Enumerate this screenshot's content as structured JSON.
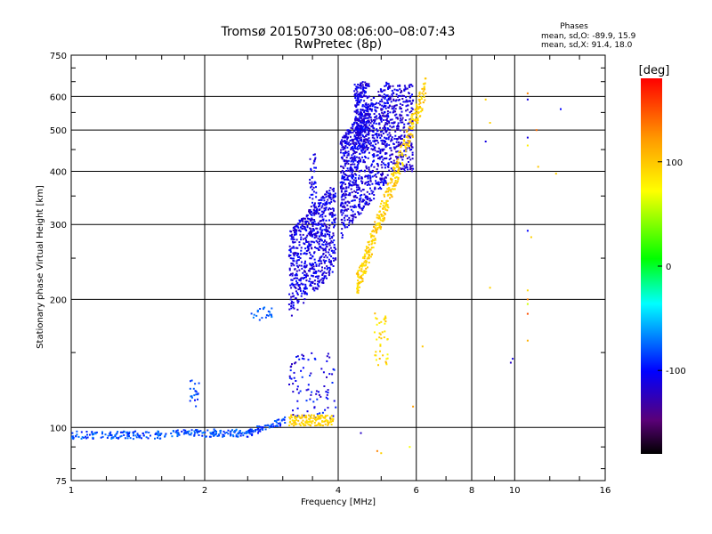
{
  "title_line1": "Tromsø 20150730 08:06:00–08:07:43",
  "title_line2": "RwPretec (8p)",
  "phase_info": {
    "heading": "Phases",
    "line_o": "mean, sd,O: -89.9, 15.9",
    "line_x": "mean, sd,X:  91.4, 18.0"
  },
  "colorbar": {
    "unit_label": "[deg]",
    "ticks": [
      "100",
      "0",
      "-100"
    ],
    "tick_values": [
      100,
      0,
      -100
    ],
    "range": [
      -180,
      180
    ],
    "colormap": "rainbow (black → purple → blue → cyan → green → yellow → orange → red)"
  },
  "chart_data": {
    "type": "scatter",
    "xlabel": "Frequency [MHz]",
    "ylabel": "Stationary phase Virtual Height [km]",
    "x_scale": "log",
    "y_scale": "log",
    "xlim": [
      1,
      16
    ],
    "ylim": [
      75,
      750
    ],
    "xticks": [
      1,
      2,
      4,
      6,
      8,
      10,
      16
    ],
    "xtick_labels": [
      "1",
      "2",
      "4",
      "6",
      "8",
      "10",
      "16"
    ],
    "yticks": [
      75,
      100,
      200,
      300,
      400,
      500,
      600,
      750
    ],
    "ytick_labels": [
      "75",
      "100",
      "200",
      "300",
      "400",
      "500",
      "600",
      "750"
    ],
    "grid": true,
    "color_encodes": "phase [deg]",
    "point_groups": [
      {
        "mode": "O (blue)",
        "phase_mean": -100,
        "x_range": [
          1.0,
          2.5
        ],
        "y_range": [
          93,
          102
        ],
        "shape": "near-constant ~97 km"
      },
      {
        "mode": "O (blue)",
        "phase_mean": -100,
        "x_range": [
          2.5,
          3.0
        ],
        "y_range": [
          97,
          105
        ],
        "shape": "rising slightly"
      },
      {
        "mode": "O (blue)",
        "phase_mean": -110,
        "x_range": [
          3.1,
          3.9
        ],
        "y_range": [
          185,
          320
        ],
        "shape": "dense band"
      },
      {
        "mode": "O (blue)",
        "phase_mean": -110,
        "x_range": [
          4.2,
          5.2
        ],
        "y_range": [
          380,
          650
        ],
        "shape": "dense band"
      },
      {
        "mode": "O (blue)",
        "phase_mean": -110,
        "x_range": [
          5.4,
          5.9
        ],
        "y_range": [
          430,
          640
        ],
        "shape": "cusp"
      },
      {
        "mode": "X (yellow)",
        "phase_mean": 95,
        "x_range": [
          3.1,
          3.9
        ],
        "y_range": [
          100,
          107
        ],
        "shape": "low trace"
      },
      {
        "mode": "X (yellow)",
        "phase_mean": 95,
        "x_range": [
          4.4,
          5.0
        ],
        "y_range": [
          210,
          300
        ],
        "shape": "rising trace"
      },
      {
        "mode": "X (yellow)",
        "phase_mean": 95,
        "x_range": [
          5.0,
          6.3
        ],
        "y_range": [
          300,
          640
        ],
        "shape": "rising trace"
      }
    ]
  }
}
